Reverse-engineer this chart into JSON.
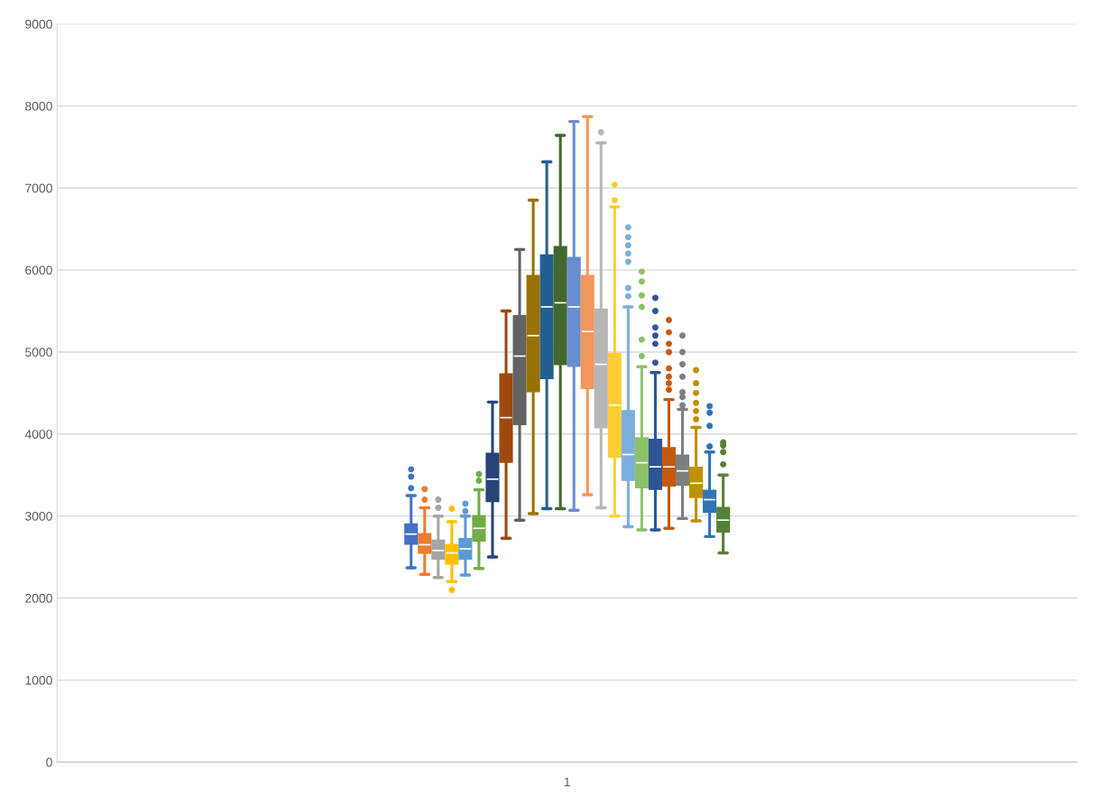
{
  "chart_data": {
    "type": "box",
    "categories": [
      "1"
    ],
    "ylim": [
      0,
      9000
    ],
    "yticks": [
      0,
      1000,
      2000,
      3000,
      4000,
      5000,
      6000,
      7000,
      8000,
      9000
    ],
    "grid": "y",
    "marker": "circle",
    "series": [
      {
        "color": "#4472c4",
        "boxes": [
          {
            "low": 2370,
            "q1": 2660,
            "median": 2780,
            "q3": 2900,
            "high": 3250,
            "outliers": [
              3340,
              3480,
              3570
            ]
          }
        ]
      },
      {
        "color": "#ed7d31",
        "boxes": [
          {
            "low": 2290,
            "q1": 2550,
            "median": 2650,
            "q3": 2780,
            "high": 3100,
            "outliers": [
              3200,
              3330
            ]
          }
        ]
      },
      {
        "color": "#a5a5a5",
        "boxes": [
          {
            "low": 2250,
            "q1": 2480,
            "median": 2580,
            "q3": 2700,
            "high": 3000,
            "outliers": [
              3100,
              3200
            ]
          }
        ]
      },
      {
        "color": "#ffc000",
        "boxes": [
          {
            "low": 2200,
            "q1": 2420,
            "median": 2550,
            "q3": 2650,
            "high": 2930,
            "outliers": [
              2100,
              3090
            ]
          }
        ]
      },
      {
        "color": "#5b9bd5",
        "boxes": [
          {
            "low": 2280,
            "q1": 2480,
            "median": 2600,
            "q3": 2720,
            "high": 3000,
            "outliers": [
              3060,
              3150
            ]
          }
        ]
      },
      {
        "color": "#70ad47",
        "boxes": [
          {
            "low": 2360,
            "q1": 2700,
            "median": 2850,
            "q3": 3000,
            "high": 3320,
            "outliers": [
              3430,
              3510
            ]
          }
        ]
      },
      {
        "color": "#264478",
        "boxes": [
          {
            "low": 2500,
            "q1": 3180,
            "median": 3450,
            "q3": 3760,
            "high": 4390
          }
        ]
      },
      {
        "color": "#9e480e",
        "boxes": [
          {
            "low": 2730,
            "q1": 3660,
            "median": 4200,
            "q3": 4730,
            "high": 5500
          }
        ]
      },
      {
        "color": "#636363",
        "boxes": [
          {
            "low": 2950,
            "q1": 4120,
            "median": 4950,
            "q3": 5440,
            "high": 6250
          }
        ]
      },
      {
        "color": "#997300",
        "boxes": [
          {
            "low": 3030,
            "q1": 4520,
            "median": 5200,
            "q3": 5930,
            "high": 6850
          }
        ]
      },
      {
        "color": "#255e91",
        "boxes": [
          {
            "low": 3090,
            "q1": 4680,
            "median": 5550,
            "q3": 6180,
            "high": 7320
          }
        ]
      },
      {
        "color": "#43682b",
        "boxes": [
          {
            "low": 3090,
            "q1": 4850,
            "median": 5600,
            "q3": 6280,
            "high": 7640
          }
        ]
      },
      {
        "color": "#698ed0",
        "boxes": [
          {
            "low": 3070,
            "q1": 4830,
            "median": 5550,
            "q3": 6150,
            "high": 7810
          }
        ]
      },
      {
        "color": "#f1975a",
        "boxes": [
          {
            "low": 3260,
            "q1": 4560,
            "median": 5250,
            "q3": 5930,
            "high": 7870
          }
        ]
      },
      {
        "color": "#b7b7b7",
        "boxes": [
          {
            "low": 3100,
            "q1": 4080,
            "median": 4850,
            "q3": 5520,
            "high": 7550,
            "outliers": [
              7680
            ]
          }
        ]
      },
      {
        "color": "#ffcd33",
        "boxes": [
          {
            "low": 3000,
            "q1": 3720,
            "median": 4350,
            "q3": 4980,
            "high": 6770,
            "outliers": [
              6850,
              7040
            ]
          }
        ]
      },
      {
        "color": "#7cafdd",
        "boxes": [
          {
            "low": 2870,
            "q1": 3440,
            "median": 3750,
            "q3": 4280,
            "high": 5550,
            "outliers": [
              5680,
              5780,
              6100,
              6200,
              6300,
              6400,
              6520
            ]
          }
        ]
      },
      {
        "color": "#8cc168",
        "boxes": [
          {
            "low": 2830,
            "q1": 3350,
            "median": 3650,
            "q3": 3950,
            "high": 4820,
            "outliers": [
              4950,
              5150,
              5550,
              5690,
              5860,
              5980
            ]
          }
        ]
      },
      {
        "color": "#2f5597",
        "boxes": [
          {
            "low": 2830,
            "q1": 3330,
            "median": 3600,
            "q3": 3930,
            "high": 4750,
            "outliers": [
              4870,
              5100,
              5200,
              5300,
              5500,
              5660
            ]
          }
        ]
      },
      {
        "color": "#c55a11",
        "boxes": [
          {
            "low": 2850,
            "q1": 3370,
            "median": 3600,
            "q3": 3830,
            "high": 4420,
            "outliers": [
              4540,
              4620,
              4700,
              4800,
              5000,
              5100,
              5240,
              5390
            ]
          }
        ]
      },
      {
        "color": "#7f7f7f",
        "boxes": [
          {
            "low": 2970,
            "q1": 3380,
            "median": 3550,
            "q3": 3740,
            "high": 4300,
            "outliers": [
              4350,
              4450,
              4510,
              4700,
              4850,
              5000,
              5200
            ]
          }
        ]
      },
      {
        "color": "#bf9000",
        "boxes": [
          {
            "low": 2940,
            "q1": 3230,
            "median": 3400,
            "q3": 3590,
            "high": 4080,
            "outliers": [
              4180,
              4280,
              4380,
              4500,
              4620,
              4780
            ]
          }
        ]
      },
      {
        "color": "#2e75b6",
        "boxes": [
          {
            "low": 2750,
            "q1": 3050,
            "median": 3200,
            "q3": 3310,
            "high": 3780,
            "outliers": [
              3850,
              4100,
              4260,
              4340
            ]
          }
        ]
      },
      {
        "color": "#548235",
        "boxes": [
          {
            "low": 2550,
            "q1": 2810,
            "median": 2950,
            "q3": 3100,
            "high": 3500,
            "outliers": [
              3630,
              3780,
              3860,
              3900
            ]
          }
        ]
      }
    ]
  }
}
